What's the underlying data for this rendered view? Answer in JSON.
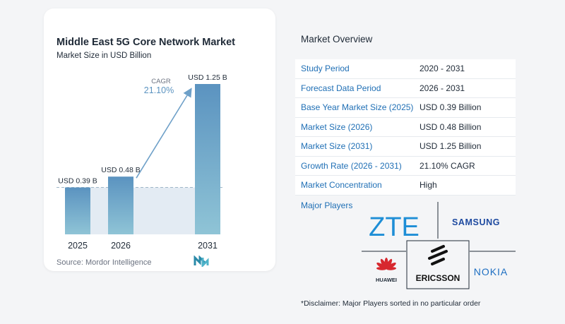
{
  "chart_data": {
    "type": "bar",
    "title": "Middle East 5G Core Network Market",
    "subtitle": "Market Size in USD Billion",
    "categories": [
      "2025",
      "2026",
      "2031"
    ],
    "values": [
      0.39,
      0.48,
      1.25
    ],
    "data_labels": [
      "USD 0.39 B",
      "USD 0.48 B",
      "USD 1.25 B"
    ],
    "cagr_label": "CAGR",
    "cagr_value": "21.10%",
    "ylim": [
      0,
      1.25
    ],
    "grid": false,
    "colors": {
      "bar_top": "#5b93c0",
      "bar_bottom": "#8fc4d6",
      "arrow": "#6ea0c8",
      "baseline_band": "#e3ebf3",
      "dashed": "#9fb6c8"
    }
  },
  "source": "Source:  Mordor Intelligence",
  "logo": "mordor-logo-icon",
  "overview": {
    "title": "Market Overview",
    "rows": [
      {
        "key": "Study Period",
        "value": "2020 - 2031"
      },
      {
        "key": "Forecast Data Period",
        "value": "2026 - 2031"
      },
      {
        "key": "Base Year Market Size (2025)",
        "value": "USD 0.39 Billion"
      },
      {
        "key": "Market Size (2026)",
        "value": "USD 0.48 Billion"
      },
      {
        "key": "Market Size (2031)",
        "value": "USD 1.25 Billion"
      },
      {
        "key": "Growth Rate (2026 - 2031)",
        "value": "21.10% CAGR"
      },
      {
        "key": "Market Concentration",
        "value": "High"
      }
    ],
    "players_label": "Major Players",
    "players": [
      "ZTE",
      "SAMSUNG",
      "HUAWEI",
      "ERICSSON",
      "NOKIA"
    ],
    "disclaimer": "*Disclaimer: Major Players sorted in no particular order"
  }
}
